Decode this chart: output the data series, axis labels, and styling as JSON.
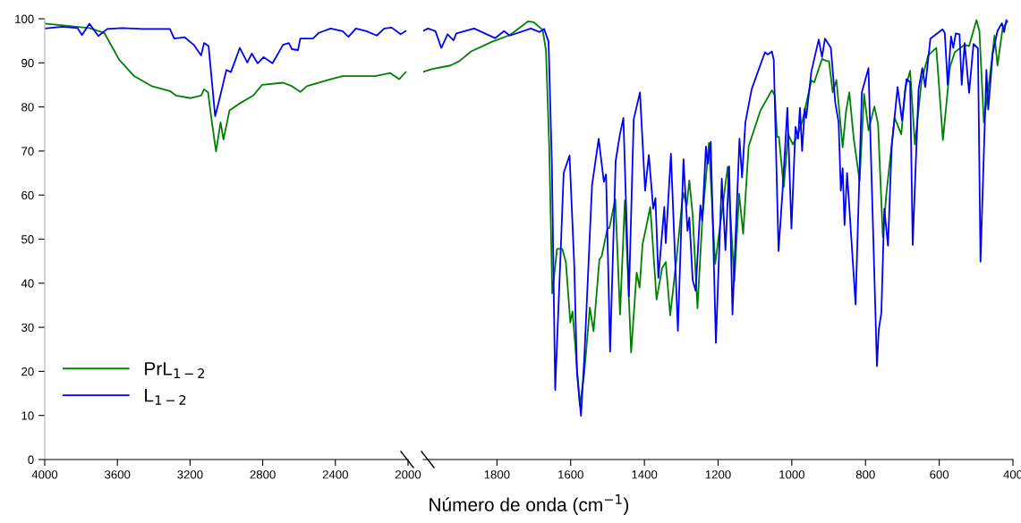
{
  "chart_data": [
    {
      "type": "line",
      "xlabel": "Número de onda (cm$^{−1}$)",
      "xlim": [
        4000,
        2000
      ],
      "xticks": [
        4000,
        3600,
        3200,
        2800,
        2400,
        2000
      ],
      "ylim": [
        0,
        100
      ],
      "yticks": [
        0,
        10,
        20,
        30,
        40,
        50,
        60,
        70,
        80,
        90,
        100
      ],
      "grid": false,
      "legend": "bottom left",
      "marker": "none",
      "line_style": "solid",
      "series": [
        {
          "name": "PrL$_{1−2}$",
          "color": "#008000",
          "x": [
            4000,
            3902,
            3754,
            3672,
            3590,
            3508,
            3410,
            3311,
            3278,
            3197,
            3139,
            3123,
            3101,
            3082,
            3057,
            3032,
            3016,
            2983,
            2934,
            2852,
            2803,
            2688,
            2639,
            2593,
            2557,
            2426,
            2360,
            2180,
            2098,
            2049,
            2013
          ],
          "values": [
            98.9,
            98.5,
            97.9,
            96.8,
            90.7,
            87.0,
            84.7,
            83.6,
            82.6,
            82.0,
            82.6,
            84.0,
            83.3,
            77.2,
            69.9,
            76.5,
            72.6,
            79.2,
            80.6,
            82.6,
            85.0,
            85.5,
            84.7,
            83.4,
            84.7,
            86.3,
            87.0,
            87.0,
            87.7,
            86.3,
            87.9
          ]
        },
        {
          "name": "L$_{1−2}$",
          "color": "#0000ff",
          "x": [
            4000,
            3902,
            3820,
            3795,
            3754,
            3705,
            3656,
            3574,
            3459,
            3311,
            3287,
            3229,
            3180,
            3139,
            3123,
            3098,
            3062,
            3041,
            3000,
            2975,
            2926,
            2885,
            2860,
            2828,
            2795,
            2746,
            2688,
            2656,
            2639,
            2606,
            2593,
            2524,
            2491,
            2426,
            2360,
            2328,
            2287,
            2229,
            2172,
            2131,
            2090,
            2041,
            2013
          ],
          "values": [
            97.8,
            98.2,
            97.9,
            96.3,
            98.9,
            96.1,
            97.7,
            97.9,
            97.7,
            97.7,
            95.5,
            95.8,
            94.1,
            91.7,
            94.5,
            93.8,
            77.9,
            81.3,
            88.4,
            87.9,
            93.4,
            90.1,
            92.1,
            89.9,
            91.3,
            89.9,
            94.1,
            94.5,
            93.1,
            92.9,
            95.5,
            95.5,
            96.8,
            97.8,
            97.2,
            95.9,
            97.8,
            97.2,
            96.2,
            97.8,
            98.0,
            96.5,
            97.2
          ]
        }
      ]
    },
    {
      "type": "line",
      "xlim": [
        2000,
        400
      ],
      "xticks": [
        1800,
        1600,
        1400,
        1200,
        1000,
        800,
        600,
        400
      ],
      "ylim": [
        0,
        100
      ],
      "tick_labels": "x",
      "grid": false,
      "marker": "none",
      "line_style": "solid",
      "series": [
        {
          "color": "#008000",
          "x": [
            1999,
            1975,
            1926,
            1902,
            1870,
            1813,
            1765,
            1716,
            1700,
            1676,
            1667,
            1658,
            1650,
            1637,
            1623,
            1613,
            1601,
            1595,
            1587,
            1575,
            1563,
            1548,
            1538,
            1522,
            1516,
            1500,
            1495,
            1479,
            1466,
            1453,
            1436,
            1421,
            1413,
            1405,
            1384,
            1367,
            1352,
            1342,
            1330,
            1313,
            1295,
            1285,
            1278,
            1269,
            1256,
            1243,
            1225,
            1208,
            1190,
            1174,
            1156,
            1143,
            1132,
            1117,
            1085,
            1054,
            1046,
            1040,
            1035,
            1022,
            1010,
            997,
            986,
            971,
            947,
            939,
            918,
            905,
            899,
            889,
            879,
            862,
            853,
            844,
            832,
            816,
            804,
            792,
            776,
            766,
            753,
            744,
            721,
            703,
            692,
            679,
            666,
            648,
            630,
            608,
            590,
            571,
            558,
            531,
            519,
            499,
            491,
            479,
            462,
            450,
            442,
            428,
            415
          ],
          "values": [
            88.0,
            88.6,
            89.4,
            90.4,
            92.6,
            94.8,
            96.3,
            99.4,
            99.2,
            97.5,
            92.8,
            70.5,
            37.7,
            47.8,
            47.8,
            44.8,
            31.1,
            33.6,
            25.2,
            12.3,
            19.7,
            34.5,
            29.1,
            45.4,
            46.1,
            52.5,
            52.5,
            59.1,
            32.9,
            58.8,
            24.3,
            42.4,
            39.0,
            48.8,
            57.3,
            36.3,
            43.4,
            44.8,
            32.7,
            45.4,
            60.6,
            57.7,
            63.3,
            55.6,
            34.3,
            54.2,
            71.8,
            44.4,
            55.9,
            66.4,
            40.4,
            60.3,
            51.2,
            71.1,
            79.2,
            83.8,
            82.6,
            73.2,
            73.2,
            61.8,
            73.8,
            71.5,
            73.2,
            76.9,
            86.0,
            85.6,
            90.9,
            90.4,
            90.4,
            83.3,
            86.1,
            70.8,
            78.9,
            83.3,
            72.8,
            63.2,
            83.0,
            74.7,
            80.1,
            76.2,
            50.5,
            59.8,
            77.5,
            73.8,
            84.3,
            88.2,
            71.5,
            85.9,
            91.7,
            93.4,
            72.5,
            89.0,
            92.4,
            94.1,
            93.8,
            99.7,
            97.2,
            76.5,
            87.4,
            96.2,
            89.4,
            97.8,
            99.4
          ]
        },
        {
          "color": "#0000ff",
          "x": [
            1999,
            1987,
            1967,
            1951,
            1934,
            1918,
            1910,
            1862,
            1805,
            1781,
            1765,
            1708,
            1684,
            1672,
            1660,
            1651,
            1642,
            1627,
            1619,
            1603,
            1590,
            1583,
            1572,
            1563,
            1542,
            1524,
            1510,
            1504,
            1493,
            1478,
            1467,
            1457,
            1442,
            1429,
            1412,
            1398,
            1388,
            1376,
            1370,
            1362,
            1346,
            1342,
            1328,
            1309,
            1294,
            1283,
            1278,
            1269,
            1261,
            1248,
            1243,
            1233,
            1228,
            1220,
            1206,
            1190,
            1180,
            1170,
            1161,
            1142,
            1135,
            1126,
            1109,
            1073,
            1065,
            1054,
            1049,
            1036,
            1024,
            1012,
            1001,
            990,
            983,
            978,
            972,
            965,
            961,
            947,
            927,
            918,
            910,
            894,
            882,
            873,
            867,
            862,
            857,
            850,
            827,
            810,
            792,
            769,
            764,
            757,
            749,
            739,
            729,
            713,
            701,
            689,
            679,
            672,
            656,
            646,
            638,
            624,
            591,
            585,
            577,
            568,
            562,
            555,
            545,
            539,
            531,
            519,
            507,
            495,
            488,
            472,
            467,
            455,
            442,
            430,
            424,
            418
          ],
          "values": [
            97.3,
            97.8,
            97.2,
            93.4,
            96.5,
            95.1,
            96.7,
            97.8,
            95.6,
            97.2,
            96.2,
            97.8,
            97.0,
            97.7,
            94.8,
            67.1,
            15.8,
            47.5,
            65.0,
            69.0,
            43.4,
            19.7,
            9.9,
            23.1,
            62.3,
            72.8,
            63.0,
            64.7,
            24.5,
            67.7,
            73.5,
            77.5,
            37.0,
            77.2,
            83.3,
            61.0,
            69.1,
            56.9,
            59.3,
            41.2,
            57.3,
            49.1,
            69.4,
            29.2,
            68.1,
            51.9,
            54.9,
            40.7,
            38.3,
            57.7,
            54.2,
            71.0,
            67.1,
            72.1,
            26.5,
            63.7,
            47.5,
            66.5,
            32.9,
            72.8,
            64.0,
            76.5,
            84.0,
            92.4,
            91.9,
            92.6,
            90.7,
            47.3,
            62.3,
            79.8,
            52.4,
            75.5,
            72.8,
            79.8,
            70.0,
            79.6,
            77.5,
            88.0,
            95.3,
            91.3,
            95.5,
            93.4,
            80.9,
            76.5,
            61.0,
            66.1,
            53.2,
            65.0,
            35.2,
            83.3,
            88.8,
            21.2,
            29.5,
            33.3,
            56.9,
            48.5,
            71.1,
            84.5,
            76.9,
            86.3,
            85.6,
            48.7,
            84.0,
            88.8,
            84.5,
            95.5,
            97.6,
            96.8,
            85.0,
            96.0,
            93.4,
            96.7,
            96.5,
            85.0,
            94.5,
            83.2,
            94.3,
            93.3,
            44.9,
            88.4,
            79.4,
            92.1,
            97.2,
            99.0,
            97.0,
            99.7
          ]
        }
      ]
    }
  ]
}
